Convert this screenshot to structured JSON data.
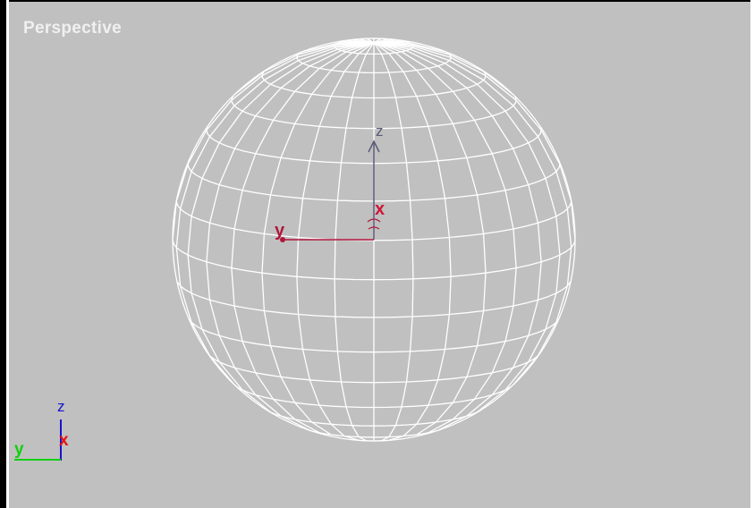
{
  "viewport": {
    "label": "Perspective",
    "background_color": "#c0c0c0",
    "wireframe_color": "#ffffff"
  },
  "object_gizmo": {
    "z_label": "z",
    "y_label": "y",
    "x_label": "x",
    "z_color": "#5a5a78",
    "y_color": "#b0173b",
    "x_color": "#d01536"
  },
  "axis_tripod": {
    "z_label": "z",
    "y_label": "y",
    "x_label": "x",
    "z_color": "#1515c8",
    "y_color": "#10d010",
    "x_color": "#e81010"
  }
}
